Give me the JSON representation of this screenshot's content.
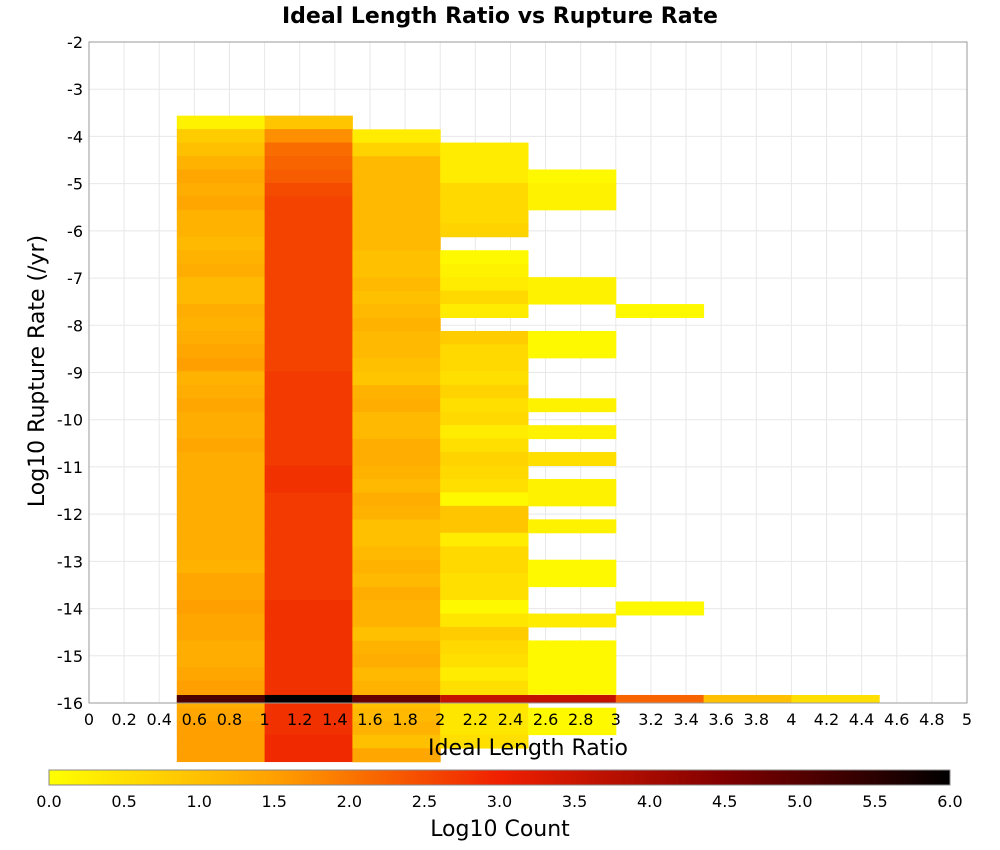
{
  "chart_data": {
    "type": "heatmap",
    "title": "Ideal Length Ratio vs Rupture Rate",
    "xlabel": "Ideal Length Ratio",
    "ylabel": "Log10 Rupture Rate (/yr)",
    "xlim": [
      0,
      5
    ],
    "ylim": [
      -16,
      -2
    ],
    "x_ticks": [
      "0",
      "0.2",
      "0.4",
      "0.6",
      "0.8",
      "1",
      "1.2",
      "1.4",
      "1.6",
      "1.8",
      "2",
      "2.2",
      "2.4",
      "2.6",
      "2.8",
      "3",
      "3.2",
      "3.4",
      "3.6",
      "3.8",
      "4",
      "4.2",
      "4.4",
      "4.6",
      "4.8",
      "5"
    ],
    "y_ticks": [
      "-2",
      "-3",
      "-4",
      "-5",
      "-6",
      "-7",
      "-8",
      "-9",
      "-10",
      "-11",
      "-12",
      "-13",
      "-14",
      "-15",
      "-16"
    ],
    "grid": true,
    "x_bin_width": 0.5,
    "y_bin_height": 0.285,
    "colorbar": {
      "label": "Log10 Count",
      "range": [
        0,
        6
      ],
      "ticks": [
        "0.0",
        "0.5",
        "1.0",
        "1.5",
        "2.0",
        "2.5",
        "3.0",
        "3.5",
        "4.0",
        "4.5",
        "5.0",
        "5.5",
        "6.0"
      ],
      "colors": [
        "#ffff00",
        "#ffa000",
        "#f02000",
        "#800000",
        "#000000"
      ]
    },
    "columns": [
      {
        "x0": 0.5,
        "y_top": -3.56,
        "values": [
          0.2,
          0.8,
          1.0,
          1.2,
          1.4,
          1.3,
          1.4,
          1.2,
          1.2,
          1.1,
          1.2,
          1.3,
          1.1,
          1.1,
          1.3,
          1.2,
          1.3,
          1.4,
          1.5,
          1.2,
          1.3,
          1.4,
          1.3,
          1.3,
          1.4,
          1.3,
          1.3,
          1.3,
          1.3,
          1.3,
          1.3,
          1.3,
          1.3,
          1.2,
          1.4,
          1.4,
          1.5,
          1.4,
          1.4,
          1.3,
          1.3,
          1.4,
          1.5,
          1.3,
          1.4,
          1.5,
          1.5,
          1.5
        ],
        "bottom_value": 5.1
      },
      {
        "x0": 1.0,
        "y_top": -3.56,
        "values": [
          0.9,
          1.7,
          2.1,
          2.2,
          2.3,
          2.5,
          2.6,
          2.6,
          2.6,
          2.6,
          2.6,
          2.6,
          2.6,
          2.6,
          2.6,
          2.6,
          2.6,
          2.6,
          2.6,
          2.7,
          2.7,
          2.7,
          2.7,
          2.7,
          2.7,
          2.7,
          2.8,
          2.8,
          2.7,
          2.7,
          2.7,
          2.7,
          2.7,
          2.7,
          2.7,
          2.7,
          2.8,
          2.8,
          2.8,
          2.8,
          2.8,
          2.8,
          2.8,
          2.8,
          2.8,
          2.8,
          2.9,
          2.9
        ],
        "bottom_value": 6.0
      },
      {
        "x0": 1.5,
        "y_top": -3.85,
        "values": [
          0.3,
          0.7,
          1.1,
          1.1,
          1.1,
          1.1,
          1.1,
          1.1,
          1.1,
          1.0,
          1.0,
          1.1,
          1.0,
          1.1,
          1.2,
          1.1,
          1.1,
          1.0,
          0.9,
          1.2,
          1.3,
          1.1,
          1.1,
          1.3,
          1.3,
          1.2,
          1.1,
          1.3,
          1.2,
          1.0,
          1.0,
          1.1,
          1.2,
          1.1,
          1.3,
          1.2,
          1.2,
          1.0,
          1.2,
          1.3,
          1.1,
          1.2,
          1.0,
          1.1,
          1.2,
          1.0,
          1.4
        ],
        "bottom_value": 4.8
      },
      {
        "x0": 2.0,
        "y_top": -4.13,
        "values": [
          0.3,
          0.3,
          0.3,
          0.6,
          0.6,
          0.6,
          0.7,
          null,
          0.1,
          0.2,
          0.3,
          0.6,
          0.3,
          null,
          0.8,
          0.6,
          0.6,
          0.5,
          0.7,
          0.5,
          0.6,
          0.3,
          0.5,
          0.7,
          0.6,
          0.5,
          0.1,
          0.9,
          0.9,
          0.3,
          0.6,
          0.6,
          0.5,
          0.5,
          0.1,
          0.4,
          0.8,
          0.6,
          0.5,
          0.3,
          0.5,
          0.4,
          0.4,
          0.4,
          0.5
        ],
        "bottom_value": 3.6
      },
      {
        "x0": 2.5,
        "y_top": -4.7,
        "values": [
          0.1,
          0.2,
          0.2,
          null,
          null,
          null,
          null,
          null,
          0.2,
          0.2,
          null,
          null,
          0.1,
          0.1,
          null,
          null,
          null,
          0.2,
          null,
          0.2,
          null,
          0.5,
          null,
          0.2,
          0.2,
          null,
          0.2,
          null,
          null,
          0.1,
          0.1,
          null,
          null,
          0.3,
          null,
          0.1,
          0.1,
          0.1,
          0.1,
          null,
          0.1,
          0.1
        ],
        "bottom_value": 3.6
      },
      {
        "x0": 3.0,
        "y_top": -7.55,
        "values": [
          0.1
        ],
        "extra": [
          {
            "y_top": -13.85,
            "value": 0.1
          }
        ],
        "bottom_value": 2.2
      },
      {
        "x0": 3.5,
        "values": [],
        "bottom_value": 1.0
      },
      {
        "x0": 4.0,
        "values": [],
        "bottom_value": 0.5
      }
    ]
  }
}
